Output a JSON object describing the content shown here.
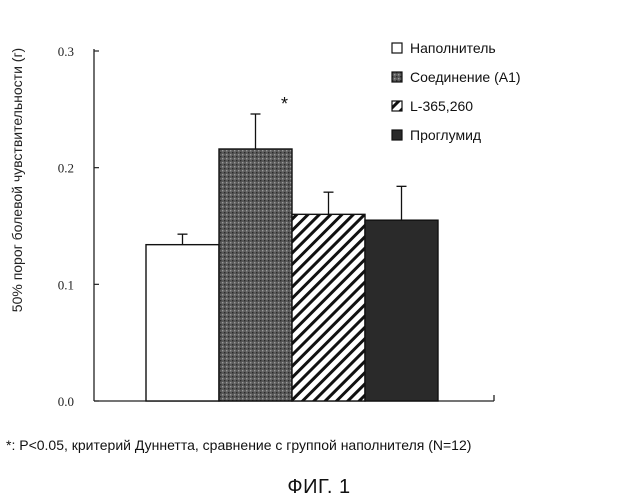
{
  "chart_data": {
    "type": "bar",
    "categories": [
      "Наполнитель",
      "Соединение (А1)",
      "L-365,260",
      "Проглумид"
    ],
    "series": [
      {
        "values": [
          0.134,
          0.216,
          0.16,
          0.155
        ],
        "errors": [
          0.009,
          0.03,
          0.019,
          0.029
        ]
      }
    ],
    "ylabel": "50% порог болевой чувствительности (г)",
    "xlabel": "",
    "ylim": [
      0,
      0.3
    ],
    "yticks": [
      "0.0",
      "0.1",
      "0.2",
      "0.3"
    ],
    "grid": false,
    "legend": {
      "placement": "top-right",
      "entries": [
        {
          "label": "Наполнитель",
          "fill": "white"
        },
        {
          "label": "Соединение (А1)",
          "fill": "dark-stipple"
        },
        {
          "label": "L-365,260",
          "fill": "diagonal-hatch"
        },
        {
          "label": "Проглумид",
          "fill": "solid-dark"
        }
      ]
    },
    "annotations": [
      {
        "category": "Соединение (А1)",
        "text": "*"
      }
    ],
    "colors": {
      "bar_fill": "#ffffff",
      "stipple": "#444444",
      "solid": "#2a2a2a",
      "axis": "#222222"
    }
  },
  "footnote": "*: P<0.05, критерий Дуннетта, сравнение с группой наполнителя (N=12)",
  "figure_title": "ФИГ. 1"
}
